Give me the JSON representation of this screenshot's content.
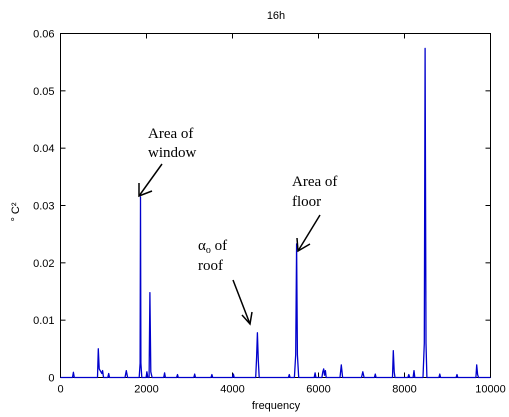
{
  "chart_data": {
    "type": "line",
    "title": "16h",
    "xlabel": "frequency",
    "ylabel": "° C²",
    "xlim": [
      0,
      10000
    ],
    "ylim": [
      0,
      0.06
    ],
    "xticks": [
      0,
      2000,
      4000,
      6000,
      8000,
      10000
    ],
    "yticks": [
      0,
      0.01,
      0.02,
      0.03,
      0.04,
      0.05,
      0.06
    ],
    "xtick_labels": [
      "0",
      "2000",
      "4000",
      "6000",
      "8000",
      "10000"
    ],
    "ytick_labels": [
      "0",
      "0.01",
      "0.02",
      "0.03",
      "0.04",
      "0.05",
      "0.06"
    ],
    "grid": false,
    "line_color": "#0000cc",
    "series": [
      {
        "x": [
          0,
          280,
          300,
          320,
          600,
          860,
          880,
          900,
          940,
          960,
          980,
          1000,
          1100,
          1120,
          1140,
          1500,
          1530,
          1560,
          1830,
          1850,
          1860,
          1870,
          1890,
          1910,
          1990,
          2010,
          2030,
          2060,
          2080,
          2100,
          2130,
          2150,
          2400,
          2420,
          2440,
          2700,
          2720,
          2740,
          3100,
          3120,
          3140,
          3500,
          3520,
          3540,
          4000,
          4020,
          4040,
          4500,
          4540,
          4560,
          4580,
          4600,
          4620,
          4660,
          5300,
          5320,
          5340,
          5440,
          5470,
          5490,
          5510,
          5540,
          5560,
          5900,
          5920,
          5940,
          6080,
          6100,
          6120,
          6140,
          6160,
          6180,
          6500,
          6530,
          6560,
          7000,
          7030,
          7060,
          7300,
          7320,
          7340,
          7720,
          7740,
          7760,
          7780,
          8080,
          8100,
          8120,
          8200,
          8220,
          8240,
          8430,
          8460,
          8480,
          8500,
          8520,
          8550,
          8800,
          8820,
          8840,
          9200,
          9220,
          9240,
          9660,
          9680,
          9700,
          9720,
          10000
        ],
        "y": [
          0,
          0,
          0.0009,
          0,
          0,
          0,
          0.005,
          0.0015,
          0.001,
          0.0007,
          0.0012,
          0,
          0,
          0.0007,
          0,
          0,
          0.0012,
          0,
          0,
          0.0025,
          0.0315,
          0.0025,
          0,
          0,
          0,
          0.001,
          0,
          0,
          0.0148,
          0.001,
          0,
          0,
          0,
          0.0008,
          0,
          0,
          0.0005,
          0,
          0,
          0.0006,
          0,
          0,
          0.0005,
          0,
          0,
          0.0006,
          0,
          0,
          0,
          0.0035,
          0.0078,
          0.003,
          0,
          0,
          0,
          0.0005,
          0,
          0,
          0.004,
          0.0233,
          0.004,
          0,
          0,
          0,
          0.0008,
          0,
          0,
          0.001,
          0.0015,
          0.0004,
          0.0012,
          0,
          0,
          0.0022,
          0,
          0,
          0.001,
          0,
          0,
          0.0006,
          0,
          0,
          0.0047,
          0.001,
          0,
          0,
          0.0005,
          0,
          0,
          0.0012,
          0,
          0,
          0.006,
          0.0574,
          0.006,
          0,
          0,
          0,
          0.0006,
          0,
          0,
          0.0005,
          0,
          0,
          0.0022,
          0.0005,
          0,
          0
        ]
      }
    ],
    "annotations": [
      {
        "lines": [
          "Area of",
          "window"
        ],
        "x": 1860,
        "y": 0.0315
      },
      {
        "lines": [
          "α",
          "o",
          " of",
          "roof"
        ],
        "x": 4580,
        "y": 0.0082
      },
      {
        "lines": [
          "Area of",
          "floor"
        ],
        "x": 5520,
        "y": 0.0218
      }
    ]
  }
}
